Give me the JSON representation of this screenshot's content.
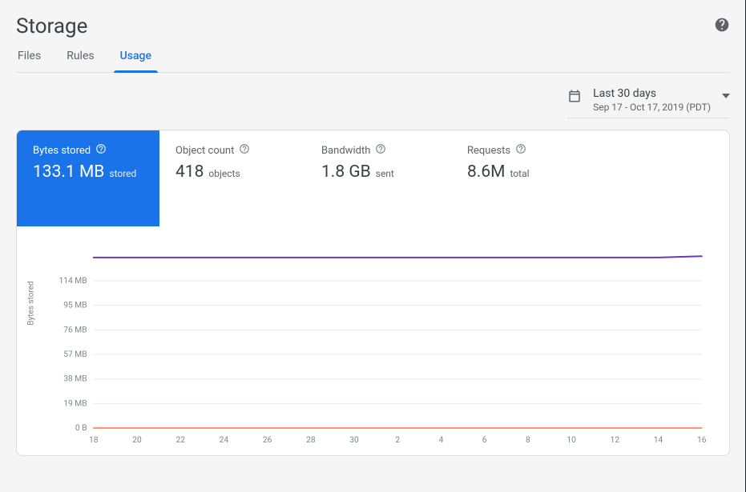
{
  "page_title": "Storage",
  "tabs": {
    "items": [
      {
        "label": "Files",
        "active": false
      },
      {
        "label": "Rules",
        "active": false
      },
      {
        "label": "Usage",
        "active": true
      }
    ]
  },
  "date_selector": {
    "label": "Last 30 days",
    "range": "Sep 17 - Oct 17, 2019 (PDT)"
  },
  "metrics": [
    {
      "key": "bytes_stored",
      "label": "Bytes stored",
      "value": "133.1 MB",
      "unit": "stored",
      "active": true
    },
    {
      "key": "object_count",
      "label": "Object count",
      "value": "418",
      "unit": "objects",
      "active": false
    },
    {
      "key": "bandwidth",
      "label": "Bandwidth",
      "value": "1.8 GB",
      "unit": "sent",
      "active": false
    },
    {
      "key": "requests",
      "label": "Requests",
      "value": "8.6M",
      "unit": "total",
      "active": false
    }
  ],
  "chart": {
    "type": "line",
    "y_axis_title": "Bytes stored",
    "x_ticks": [
      "18",
      "20",
      "22",
      "24",
      "26",
      "28",
      "30",
      "2",
      "4",
      "6",
      "8",
      "10",
      "12",
      "14",
      "16"
    ],
    "y_ticks": [
      {
        "label": "0 B",
        "value": 0
      },
      {
        "label": "19 MB",
        "value": 19
      },
      {
        "label": "38 MB",
        "value": 38
      },
      {
        "label": "57 MB",
        "value": 57
      },
      {
        "label": "76 MB",
        "value": 76
      },
      {
        "label": "95 MB",
        "value": 95
      },
      {
        "label": "114 MB",
        "value": 114
      }
    ],
    "y_max": 140,
    "series": [
      {
        "name": "bytes-stored",
        "color": "#673ab7",
        "width": 2,
        "values": [
          132,
          132,
          132,
          132,
          132,
          132,
          132,
          132,
          132,
          132,
          132,
          132,
          132,
          132,
          133
        ]
      },
      {
        "name": "baseline",
        "color": "#ff7043",
        "width": 1.5,
        "values": [
          0,
          0,
          0,
          0,
          0,
          0,
          0,
          0,
          0,
          0,
          0,
          0,
          0,
          0,
          0
        ]
      }
    ],
    "grid_color": "#e8eaed",
    "label_color": "#80868b",
    "label_fontsize": 10,
    "background_color": "#ffffff"
  },
  "colors": {
    "accent": "#1a73e8",
    "page_bg": "#f5f5f5",
    "card_bg": "#ffffff",
    "border": "#dadce0",
    "text_primary": "#3c4043",
    "text_secondary": "#5f6368"
  }
}
